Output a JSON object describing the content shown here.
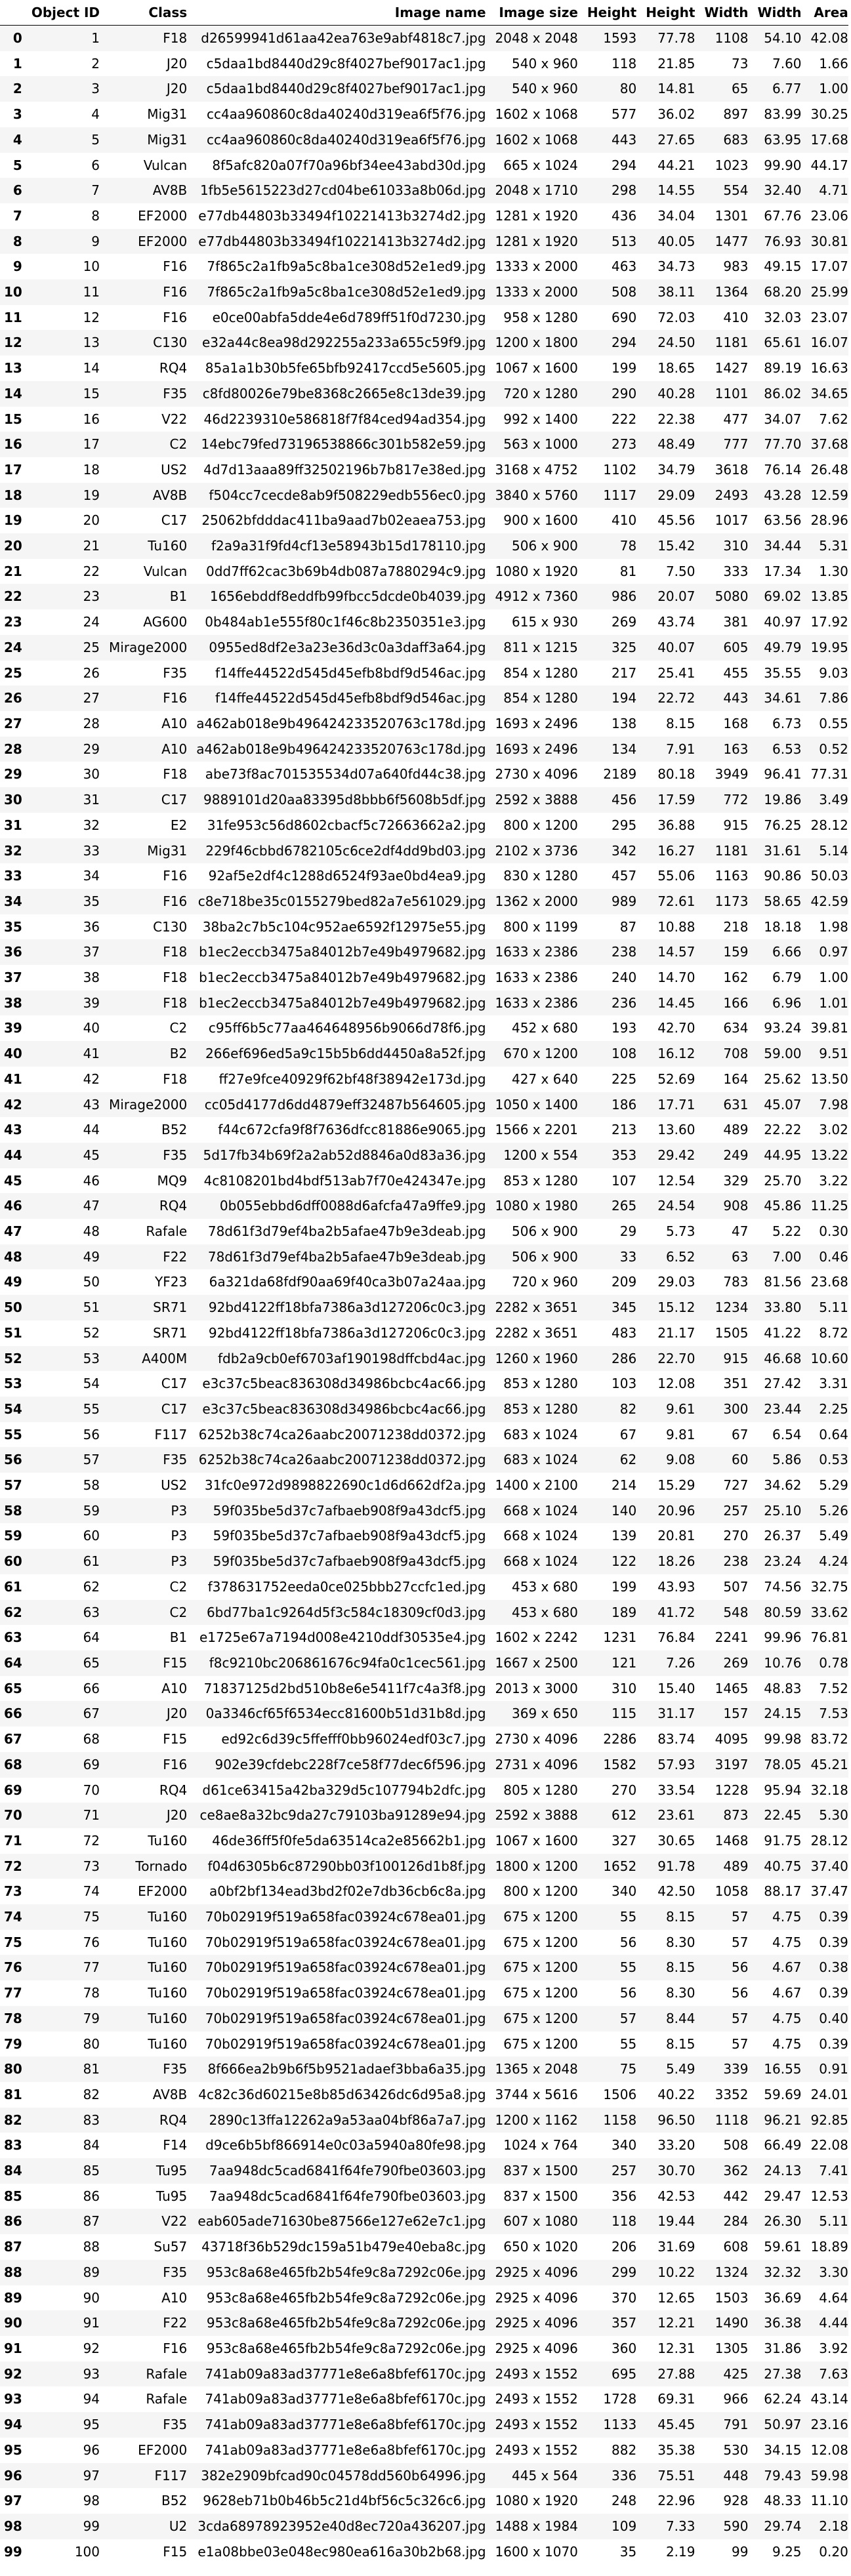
{
  "columns": [
    "Object ID",
    "Class",
    "Image name",
    "Image size",
    "Height",
    "Height",
    "Width",
    "Width",
    "Area"
  ],
  "rows": [
    [
      "0",
      "1",
      "F18",
      "d26599941d61aa42ea763e9abf4818c7.jpg",
      "2048 x 2048",
      "1593",
      "77.78",
      "1108",
      "54.10",
      "42.08"
    ],
    [
      "1",
      "2",
      "J20",
      "c5daa1bd8440d29c8f4027bef9017ac1.jpg",
      "540 x 960",
      "118",
      "21.85",
      "73",
      "7.60",
      "1.66"
    ],
    [
      "2",
      "3",
      "J20",
      "c5daa1bd8440d29c8f4027bef9017ac1.jpg",
      "540 x 960",
      "80",
      "14.81",
      "65",
      "6.77",
      "1.00"
    ],
    [
      "3",
      "4",
      "Mig31",
      "cc4aa960860c8da40240d319ea6f5f76.jpg",
      "1602 x 1068",
      "577",
      "36.02",
      "897",
      "83.99",
      "30.25"
    ],
    [
      "4",
      "5",
      "Mig31",
      "cc4aa960860c8da40240d319ea6f5f76.jpg",
      "1602 x 1068",
      "443",
      "27.65",
      "683",
      "63.95",
      "17.68"
    ],
    [
      "5",
      "6",
      "Vulcan",
      "8f5afc820a07f70a96bf34ee43abd30d.jpg",
      "665 x 1024",
      "294",
      "44.21",
      "1023",
      "99.90",
      "44.17"
    ],
    [
      "6",
      "7",
      "AV8B",
      "1fb5e5615223d27cd04be61033a8b06d.jpg",
      "2048 x 1710",
      "298",
      "14.55",
      "554",
      "32.40",
      "4.71"
    ],
    [
      "7",
      "8",
      "EF2000",
      "e77db44803b33494f10221413b3274d2.jpg",
      "1281 x 1920",
      "436",
      "34.04",
      "1301",
      "67.76",
      "23.06"
    ],
    [
      "8",
      "9",
      "EF2000",
      "e77db44803b33494f10221413b3274d2.jpg",
      "1281 x 1920",
      "513",
      "40.05",
      "1477",
      "76.93",
      "30.81"
    ],
    [
      "9",
      "10",
      "F16",
      "7f865c2a1fb9a5c8ba1ce308d52e1ed9.jpg",
      "1333 x 2000",
      "463",
      "34.73",
      "983",
      "49.15",
      "17.07"
    ],
    [
      "10",
      "11",
      "F16",
      "7f865c2a1fb9a5c8ba1ce308d52e1ed9.jpg",
      "1333 x 2000",
      "508",
      "38.11",
      "1364",
      "68.20",
      "25.99"
    ],
    [
      "11",
      "12",
      "F16",
      "e0ce00abfa5dde4e6d789ff51f0d7230.jpg",
      "958 x 1280",
      "690",
      "72.03",
      "410",
      "32.03",
      "23.07"
    ],
    [
      "12",
      "13",
      "C130",
      "e32a44c8ea98d292255a233a655c59f9.jpg",
      "1200 x 1800",
      "294",
      "24.50",
      "1181",
      "65.61",
      "16.07"
    ],
    [
      "13",
      "14",
      "RQ4",
      "85a1a1b30b5fe65bfb92417ccd5e5605.jpg",
      "1067 x 1600",
      "199",
      "18.65",
      "1427",
      "89.19",
      "16.63"
    ],
    [
      "14",
      "15",
      "F35",
      "c8fd80026e79be8368c2665e8c13de39.jpg",
      "720 x 1280",
      "290",
      "40.28",
      "1101",
      "86.02",
      "34.65"
    ],
    [
      "15",
      "16",
      "V22",
      "46d2239310e586818f7f84ced94ad354.jpg",
      "992 x 1400",
      "222",
      "22.38",
      "477",
      "34.07",
      "7.62"
    ],
    [
      "16",
      "17",
      "C2",
      "14ebc79fed73196538866c301b582e59.jpg",
      "563 x 1000",
      "273",
      "48.49",
      "777",
      "77.70",
      "37.68"
    ],
    [
      "17",
      "18",
      "US2",
      "4d7d13aaa89ff32502196b7b817e38ed.jpg",
      "3168 x 4752",
      "1102",
      "34.79",
      "3618",
      "76.14",
      "26.48"
    ],
    [
      "18",
      "19",
      "AV8B",
      "f504cc7cecde8ab9f508229edb556ec0.jpg",
      "3840 x 5760",
      "1117",
      "29.09",
      "2493",
      "43.28",
      "12.59"
    ],
    [
      "19",
      "20",
      "C17",
      "25062bfdddac411ba9aad7b02eaea753.jpg",
      "900 x 1600",
      "410",
      "45.56",
      "1017",
      "63.56",
      "28.96"
    ],
    [
      "20",
      "21",
      "Tu160",
      "f2a9a31f9fd4cf13e58943b15d178110.jpg",
      "506 x 900",
      "78",
      "15.42",
      "310",
      "34.44",
      "5.31"
    ],
    [
      "21",
      "22",
      "Vulcan",
      "0dd7ff62cac3b69b4db087a7880294c9.jpg",
      "1080 x 1920",
      "81",
      "7.50",
      "333",
      "17.34",
      "1.30"
    ],
    [
      "22",
      "23",
      "B1",
      "1656ebddf8eddfb99fbcc5dcde0b4039.jpg",
      "4912 x 7360",
      "986",
      "20.07",
      "5080",
      "69.02",
      "13.85"
    ],
    [
      "23",
      "24",
      "AG600",
      "0b484ab1e555f80c1f46c8b2350351e3.jpg",
      "615 x 930",
      "269",
      "43.74",
      "381",
      "40.97",
      "17.92"
    ],
    [
      "24",
      "25",
      "Mirage2000",
      "0955ed8df2e3a23e36d3c0a3daff3a64.jpg",
      "811 x 1215",
      "325",
      "40.07",
      "605",
      "49.79",
      "19.95"
    ],
    [
      "25",
      "26",
      "F35",
      "f14ffe44522d545d45efb8bdf9d546ac.jpg",
      "854 x 1280",
      "217",
      "25.41",
      "455",
      "35.55",
      "9.03"
    ],
    [
      "26",
      "27",
      "F16",
      "f14ffe44522d545d45efb8bdf9d546ac.jpg",
      "854 x 1280",
      "194",
      "22.72",
      "443",
      "34.61",
      "7.86"
    ],
    [
      "27",
      "28",
      "A10",
      "a462ab018e9b496424233520763c178d.jpg",
      "1693 x 2496",
      "138",
      "8.15",
      "168",
      "6.73",
      "0.55"
    ],
    [
      "28",
      "29",
      "A10",
      "a462ab018e9b496424233520763c178d.jpg",
      "1693 x 2496",
      "134",
      "7.91",
      "163",
      "6.53",
      "0.52"
    ],
    [
      "29",
      "30",
      "F18",
      "abe73f8ac701535534d07a640fd44c38.jpg",
      "2730 x 4096",
      "2189",
      "80.18",
      "3949",
      "96.41",
      "77.31"
    ],
    [
      "30",
      "31",
      "C17",
      "9889101d20aa83395d8bbb6f5608b5df.jpg",
      "2592 x 3888",
      "456",
      "17.59",
      "772",
      "19.86",
      "3.49"
    ],
    [
      "31",
      "32",
      "E2",
      "31fe953c56d8602cbacf5c72663662a2.jpg",
      "800 x 1200",
      "295",
      "36.88",
      "915",
      "76.25",
      "28.12"
    ],
    [
      "32",
      "33",
      "Mig31",
      "229f46cbbd6782105c6ce2df4dd9bd03.jpg",
      "2102 x 3736",
      "342",
      "16.27",
      "1181",
      "31.61",
      "5.14"
    ],
    [
      "33",
      "34",
      "F16",
      "92af5e2df4c1288d6524f93ae0bd4ea9.jpg",
      "830 x 1280",
      "457",
      "55.06",
      "1163",
      "90.86",
      "50.03"
    ],
    [
      "34",
      "35",
      "F16",
      "c8e718be35c0155279bed82a7e561029.jpg",
      "1362 x 2000",
      "989",
      "72.61",
      "1173",
      "58.65",
      "42.59"
    ],
    [
      "35",
      "36",
      "C130",
      "38ba2c7b5c104c952ae6592f12975e55.jpg",
      "800 x 1199",
      "87",
      "10.88",
      "218",
      "18.18",
      "1.98"
    ],
    [
      "36",
      "37",
      "F18",
      "b1ec2eccb3475a84012b7e49b4979682.jpg",
      "1633 x 2386",
      "238",
      "14.57",
      "159",
      "6.66",
      "0.97"
    ],
    [
      "37",
      "38",
      "F18",
      "b1ec2eccb3475a84012b7e49b4979682.jpg",
      "1633 x 2386",
      "240",
      "14.70",
      "162",
      "6.79",
      "1.00"
    ],
    [
      "38",
      "39",
      "F18",
      "b1ec2eccb3475a84012b7e49b4979682.jpg",
      "1633 x 2386",
      "236",
      "14.45",
      "166",
      "6.96",
      "1.01"
    ],
    [
      "39",
      "40",
      "C2",
      "c95ff6b5c77aa464648956b9066d78f6.jpg",
      "452 x 680",
      "193",
      "42.70",
      "634",
      "93.24",
      "39.81"
    ],
    [
      "40",
      "41",
      "B2",
      "266ef696ed5a9c15b5b6dd4450a8a52f.jpg",
      "670 x 1200",
      "108",
      "16.12",
      "708",
      "59.00",
      "9.51"
    ],
    [
      "41",
      "42",
      "F18",
      "ff27e9fce40929f62bf48f38942e173d.jpg",
      "427 x 640",
      "225",
      "52.69",
      "164",
      "25.62",
      "13.50"
    ],
    [
      "42",
      "43",
      "Mirage2000",
      "cc05d4177d6dd4879eff32487b564605.jpg",
      "1050 x 1400",
      "186",
      "17.71",
      "631",
      "45.07",
      "7.98"
    ],
    [
      "43",
      "44",
      "B52",
      "f44c672cfa9f8f7636dfcc81886e9065.jpg",
      "1566 x 2201",
      "213",
      "13.60",
      "489",
      "22.22",
      "3.02"
    ],
    [
      "44",
      "45",
      "F35",
      "5d17fb34b69f2a2ab52d8846a0d83a36.jpg",
      "1200 x 554",
      "353",
      "29.42",
      "249",
      "44.95",
      "13.22"
    ],
    [
      "45",
      "46",
      "MQ9",
      "4c8108201bd4bdf513ab7f70e424347e.jpg",
      "853 x 1280",
      "107",
      "12.54",
      "329",
      "25.70",
      "3.22"
    ],
    [
      "46",
      "47",
      "RQ4",
      "0b055ebbd6dff0088d6afcfa47a9ffe9.jpg",
      "1080 x 1980",
      "265",
      "24.54",
      "908",
      "45.86",
      "11.25"
    ],
    [
      "47",
      "48",
      "Rafale",
      "78d61f3d79ef4ba2b5afae47b9e3deab.jpg",
      "506 x 900",
      "29",
      "5.73",
      "47",
      "5.22",
      "0.30"
    ],
    [
      "48",
      "49",
      "F22",
      "78d61f3d79ef4ba2b5afae47b9e3deab.jpg",
      "506 x 900",
      "33",
      "6.52",
      "63",
      "7.00",
      "0.46"
    ],
    [
      "49",
      "50",
      "YF23",
      "6a321da68fdf90aa69f40ca3b07a24aa.jpg",
      "720 x 960",
      "209",
      "29.03",
      "783",
      "81.56",
      "23.68"
    ],
    [
      "50",
      "51",
      "SR71",
      "92bd4122ff18bfa7386a3d127206c0c3.jpg",
      "2282 x 3651",
      "345",
      "15.12",
      "1234",
      "33.80",
      "5.11"
    ],
    [
      "51",
      "52",
      "SR71",
      "92bd4122ff18bfa7386a3d127206c0c3.jpg",
      "2282 x 3651",
      "483",
      "21.17",
      "1505",
      "41.22",
      "8.72"
    ],
    [
      "52",
      "53",
      "A400M",
      "fdb2a9cb0ef6703af190198dffcbd4ac.jpg",
      "1260 x 1960",
      "286",
      "22.70",
      "915",
      "46.68",
      "10.60"
    ],
    [
      "53",
      "54",
      "C17",
      "e3c37c5beac836308d34986bcbc4ac66.jpg",
      "853 x 1280",
      "103",
      "12.08",
      "351",
      "27.42",
      "3.31"
    ],
    [
      "54",
      "55",
      "C17",
      "e3c37c5beac836308d34986bcbc4ac66.jpg",
      "853 x 1280",
      "82",
      "9.61",
      "300",
      "23.44",
      "2.25"
    ],
    [
      "55",
      "56",
      "F117",
      "6252b38c74ca26aabc20071238dd0372.jpg",
      "683 x 1024",
      "67",
      "9.81",
      "67",
      "6.54",
      "0.64"
    ],
    [
      "56",
      "57",
      "F35",
      "6252b38c74ca26aabc20071238dd0372.jpg",
      "683 x 1024",
      "62",
      "9.08",
      "60",
      "5.86",
      "0.53"
    ],
    [
      "57",
      "58",
      "US2",
      "31fc0e972d9898822690c1d6d662df2a.jpg",
      "1400 x 2100",
      "214",
      "15.29",
      "727",
      "34.62",
      "5.29"
    ],
    [
      "58",
      "59",
      "P3",
      "59f035be5d37c7afbaeb908f9a43dcf5.jpg",
      "668 x 1024",
      "140",
      "20.96",
      "257",
      "25.10",
      "5.26"
    ],
    [
      "59",
      "60",
      "P3",
      "59f035be5d37c7afbaeb908f9a43dcf5.jpg",
      "668 x 1024",
      "139",
      "20.81",
      "270",
      "26.37",
      "5.49"
    ],
    [
      "60",
      "61",
      "P3",
      "59f035be5d37c7afbaeb908f9a43dcf5.jpg",
      "668 x 1024",
      "122",
      "18.26",
      "238",
      "23.24",
      "4.24"
    ],
    [
      "61",
      "62",
      "C2",
      "f378631752eeda0ce025bbb27ccfc1ed.jpg",
      "453 x 680",
      "199",
      "43.93",
      "507",
      "74.56",
      "32.75"
    ],
    [
      "62",
      "63",
      "C2",
      "6bd77ba1c9264d5f3c584c18309cf0d3.jpg",
      "453 x 680",
      "189",
      "41.72",
      "548",
      "80.59",
      "33.62"
    ],
    [
      "63",
      "64",
      "B1",
      "e1725e67a7194d008e4210ddf30535e4.jpg",
      "1602 x 2242",
      "1231",
      "76.84",
      "2241",
      "99.96",
      "76.81"
    ],
    [
      "64",
      "65",
      "F15",
      "f8c9210bc206861676c94fa0c1cec561.jpg",
      "1667 x 2500",
      "121",
      "7.26",
      "269",
      "10.76",
      "0.78"
    ],
    [
      "65",
      "66",
      "A10",
      "71837125d2bd510b8e6e5411f7c4a3f8.jpg",
      "2013 x 3000",
      "310",
      "15.40",
      "1465",
      "48.83",
      "7.52"
    ],
    [
      "66",
      "67",
      "J20",
      "0a3346cf65f6534ecc81600b51d31b8d.jpg",
      "369 x 650",
      "115",
      "31.17",
      "157",
      "24.15",
      "7.53"
    ],
    [
      "67",
      "68",
      "F15",
      "ed92c6d39c5ffefff0bb96024edf03c7.jpg",
      "2730 x 4096",
      "2286",
      "83.74",
      "4095",
      "99.98",
      "83.72"
    ],
    [
      "68",
      "69",
      "F16",
      "902e39cfdebc228f7ce58f77dec6f596.jpg",
      "2731 x 4096",
      "1582",
      "57.93",
      "3197",
      "78.05",
      "45.21"
    ],
    [
      "69",
      "70",
      "RQ4",
      "d61ce63415a42ba329d5c107794b2dfc.jpg",
      "805 x 1280",
      "270",
      "33.54",
      "1228",
      "95.94",
      "32.18"
    ],
    [
      "70",
      "71",
      "J20",
      "ce8ae8a32bc9da27c79103ba91289e94.jpg",
      "2592 x 3888",
      "612",
      "23.61",
      "873",
      "22.45",
      "5.30"
    ],
    [
      "71",
      "72",
      "Tu160",
      "46de36ff5f0fe5da63514ca2e85662b1.jpg",
      "1067 x 1600",
      "327",
      "30.65",
      "1468",
      "91.75",
      "28.12"
    ],
    [
      "72",
      "73",
      "Tornado",
      "f04d6305b6c87290bb03f100126d1b8f.jpg",
      "1800 x 1200",
      "1652",
      "91.78",
      "489",
      "40.75",
      "37.40"
    ],
    [
      "73",
      "74",
      "EF2000",
      "a0bf2bf134ead3bd2f02e7db36cb6c8a.jpg",
      "800 x 1200",
      "340",
      "42.50",
      "1058",
      "88.17",
      "37.47"
    ],
    [
      "74",
      "75",
      "Tu160",
      "70b02919f519a658fac03924c678ea01.jpg",
      "675 x 1200",
      "55",
      "8.15",
      "57",
      "4.75",
      "0.39"
    ],
    [
      "75",
      "76",
      "Tu160",
      "70b02919f519a658fac03924c678ea01.jpg",
      "675 x 1200",
      "56",
      "8.30",
      "57",
      "4.75",
      "0.39"
    ],
    [
      "76",
      "77",
      "Tu160",
      "70b02919f519a658fac03924c678ea01.jpg",
      "675 x 1200",
      "55",
      "8.15",
      "56",
      "4.67",
      "0.38"
    ],
    [
      "77",
      "78",
      "Tu160",
      "70b02919f519a658fac03924c678ea01.jpg",
      "675 x 1200",
      "56",
      "8.30",
      "56",
      "4.67",
      "0.39"
    ],
    [
      "78",
      "79",
      "Tu160",
      "70b02919f519a658fac03924c678ea01.jpg",
      "675 x 1200",
      "57",
      "8.44",
      "57",
      "4.75",
      "0.40"
    ],
    [
      "79",
      "80",
      "Tu160",
      "70b02919f519a658fac03924c678ea01.jpg",
      "675 x 1200",
      "55",
      "8.15",
      "57",
      "4.75",
      "0.39"
    ],
    [
      "80",
      "81",
      "F35",
      "8f666ea2b9b6f5b9521adaef3bba6a35.jpg",
      "1365 x 2048",
      "75",
      "5.49",
      "339",
      "16.55",
      "0.91"
    ],
    [
      "81",
      "82",
      "AV8B",
      "4c82c36d60215e8b85d63426dc6d95a8.jpg",
      "3744 x 5616",
      "1506",
      "40.22",
      "3352",
      "59.69",
      "24.01"
    ],
    [
      "82",
      "83",
      "RQ4",
      "2890c13ffa12262a9a53aa04bf86a7a7.jpg",
      "1200 x 1162",
      "1158",
      "96.50",
      "1118",
      "96.21",
      "92.85"
    ],
    [
      "83",
      "84",
      "F14",
      "d9ce6b5bf866914e0c03a5940a80fe98.jpg",
      "1024 x 764",
      "340",
      "33.20",
      "508",
      "66.49",
      "22.08"
    ],
    [
      "84",
      "85",
      "Tu95",
      "7aa948dc5cad6841f64fe790fbe03603.jpg",
      "837 x 1500",
      "257",
      "30.70",
      "362",
      "24.13",
      "7.41"
    ],
    [
      "85",
      "86",
      "Tu95",
      "7aa948dc5cad6841f64fe790fbe03603.jpg",
      "837 x 1500",
      "356",
      "42.53",
      "442",
      "29.47",
      "12.53"
    ],
    [
      "86",
      "87",
      "V22",
      "eab605ade71630be87566e127e62e7c1.jpg",
      "607 x 1080",
      "118",
      "19.44",
      "284",
      "26.30",
      "5.11"
    ],
    [
      "87",
      "88",
      "Su57",
      "43718f36b529dc159a51b479e40eba8c.jpg",
      "650 x 1020",
      "206",
      "31.69",
      "608",
      "59.61",
      "18.89"
    ],
    [
      "88",
      "89",
      "F35",
      "953c8a68e465fb2b54fe9c8a7292c06e.jpg",
      "2925 x 4096",
      "299",
      "10.22",
      "1324",
      "32.32",
      "3.30"
    ],
    [
      "89",
      "90",
      "A10",
      "953c8a68e465fb2b54fe9c8a7292c06e.jpg",
      "2925 x 4096",
      "370",
      "12.65",
      "1503",
      "36.69",
      "4.64"
    ],
    [
      "90",
      "91",
      "F22",
      "953c8a68e465fb2b54fe9c8a7292c06e.jpg",
      "2925 x 4096",
      "357",
      "12.21",
      "1490",
      "36.38",
      "4.44"
    ],
    [
      "91",
      "92",
      "F16",
      "953c8a68e465fb2b54fe9c8a7292c06e.jpg",
      "2925 x 4096",
      "360",
      "12.31",
      "1305",
      "31.86",
      "3.92"
    ],
    [
      "92",
      "93",
      "Rafale",
      "741ab09a83ad37771e8e6a8bfef6170c.jpg",
      "2493 x 1552",
      "695",
      "27.88",
      "425",
      "27.38",
      "7.63"
    ],
    [
      "93",
      "94",
      "Rafale",
      "741ab09a83ad37771e8e6a8bfef6170c.jpg",
      "2493 x 1552",
      "1728",
      "69.31",
      "966",
      "62.24",
      "43.14"
    ],
    [
      "94",
      "95",
      "F35",
      "741ab09a83ad37771e8e6a8bfef6170c.jpg",
      "2493 x 1552",
      "1133",
      "45.45",
      "791",
      "50.97",
      "23.16"
    ],
    [
      "95",
      "96",
      "EF2000",
      "741ab09a83ad37771e8e6a8bfef6170c.jpg",
      "2493 x 1552",
      "882",
      "35.38",
      "530",
      "34.15",
      "12.08"
    ],
    [
      "96",
      "97",
      "F117",
      "382e2909bfcad90c04578dd560b64996.jpg",
      "445 x 564",
      "336",
      "75.51",
      "448",
      "79.43",
      "59.98"
    ],
    [
      "97",
      "98",
      "B52",
      "9628eb71b0b46b5c21d4bf56c5c326c6.jpg",
      "1080 x 1920",
      "248",
      "22.96",
      "928",
      "48.33",
      "11.10"
    ],
    [
      "98",
      "99",
      "U2",
      "3cda68978923952e40d8ec720a436207.jpg",
      "1488 x 1984",
      "109",
      "7.33",
      "590",
      "29.74",
      "2.18"
    ],
    [
      "99",
      "100",
      "F15",
      "e1a08bbe03e048ec980ea616a30b2b68.jpg",
      "1600 x 1070",
      "35",
      "2.19",
      "99",
      "9.25",
      "0.20"
    ]
  ]
}
